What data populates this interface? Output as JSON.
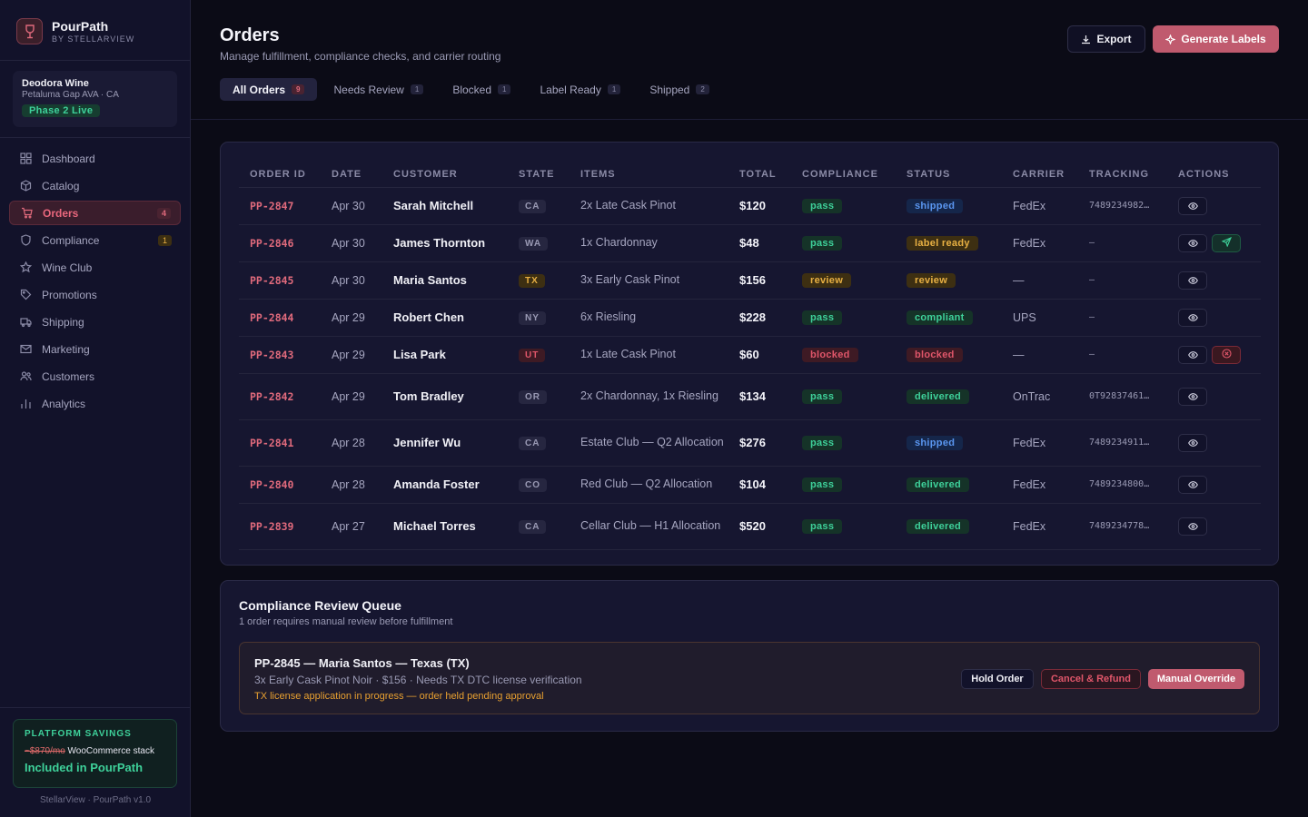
{
  "brand": {
    "name": "PourPath",
    "sub": "BY STELLARVIEW"
  },
  "winery": {
    "name": "Deodora Wine",
    "location": "Petaluma Gap AVA · CA",
    "phase": "Phase 2 Live"
  },
  "nav": [
    {
      "label": "Dashboard",
      "icon": "grid-icon",
      "count": ""
    },
    {
      "label": "Catalog",
      "icon": "box-icon",
      "count": ""
    },
    {
      "label": "Orders",
      "icon": "cart-icon",
      "count": "4",
      "active": true
    },
    {
      "label": "Compliance",
      "icon": "shield-icon",
      "count": "1"
    },
    {
      "label": "Wine Club",
      "icon": "star-icon",
      "count": ""
    },
    {
      "label": "Promotions",
      "icon": "tag-icon",
      "count": ""
    },
    {
      "label": "Shipping",
      "icon": "truck-icon",
      "count": ""
    },
    {
      "label": "Marketing",
      "icon": "mail-icon",
      "count": ""
    },
    {
      "label": "Customers",
      "icon": "users-icon",
      "count": ""
    },
    {
      "label": "Analytics",
      "icon": "bar-chart-icon",
      "count": ""
    }
  ],
  "savings": {
    "heading": "PLATFORM SAVINGS",
    "old_price": "~$870/mo",
    "stack": "WooCommerce stack",
    "included": "Included in PourPath"
  },
  "footer": "StellarView · PourPath v1.0",
  "header": {
    "title": "Orders",
    "subtitle": "Manage fulfillment, compliance checks, and carrier routing",
    "export_label": "Export",
    "generate_label": "Generate Labels"
  },
  "tabs": [
    {
      "label": "All Orders",
      "count": "9"
    },
    {
      "label": "Needs Review",
      "count": "1"
    },
    {
      "label": "Blocked",
      "count": "1"
    },
    {
      "label": "Label Ready",
      "count": "1"
    },
    {
      "label": "Shipped",
      "count": "2"
    }
  ],
  "table": {
    "columns": [
      "ORDER ID",
      "DATE",
      "CUSTOMER",
      "STATE",
      "ITEMS",
      "TOTAL",
      "COMPLIANCE",
      "STATUS",
      "CARRIER",
      "TRACKING",
      "ACTIONS"
    ],
    "rows": [
      {
        "id": "PP-2847",
        "date": "Apr 30",
        "customer": "Sarah Mitchell",
        "state": "CA",
        "items": "2x Late Cask Pinot",
        "total": "$120",
        "compliance": "pass",
        "status": "shipped",
        "carrier": "FedEx",
        "tracking": "7489234982…"
      },
      {
        "id": "PP-2846",
        "date": "Apr 30",
        "customer": "James Thornton",
        "state": "WA",
        "items": "1x Chardonnay",
        "total": "$48",
        "compliance": "pass",
        "status": "label ready",
        "carrier": "FedEx",
        "tracking": "–"
      },
      {
        "id": "PP-2845",
        "date": "Apr 30",
        "customer": "Maria Santos",
        "state": "TX",
        "items": "3x Early Cask Pinot",
        "total": "$156",
        "compliance": "review",
        "status": "review",
        "carrier": "—",
        "tracking": "–"
      },
      {
        "id": "PP-2844",
        "date": "Apr 29",
        "customer": "Robert Chen",
        "state": "NY",
        "items": "6x Riesling",
        "total": "$228",
        "compliance": "pass",
        "status": "compliant",
        "carrier": "UPS",
        "tracking": "–"
      },
      {
        "id": "PP-2843",
        "date": "Apr 29",
        "customer": "Lisa Park",
        "state": "UT",
        "items": "1x Late Cask Pinot",
        "total": "$60",
        "compliance": "blocked",
        "status": "blocked",
        "carrier": "—",
        "tracking": "–"
      },
      {
        "id": "PP-2842",
        "date": "Apr 29",
        "customer": "Tom Bradley",
        "state": "OR",
        "items": "2x Chardonnay, 1x Riesling",
        "total": "$134",
        "compliance": "pass",
        "status": "delivered",
        "carrier": "OnTrac",
        "tracking": "0T92837461…"
      },
      {
        "id": "PP-2841",
        "date": "Apr 28",
        "customer": "Jennifer Wu",
        "state": "CA",
        "items": "Estate Club — Q2 Allocation",
        "total": "$276",
        "compliance": "pass",
        "status": "shipped",
        "carrier": "FedEx",
        "tracking": "7489234911…"
      },
      {
        "id": "PP-2840",
        "date": "Apr 28",
        "customer": "Amanda Foster",
        "state": "CO",
        "items": "Red Club — Q2 Allocation",
        "total": "$104",
        "compliance": "pass",
        "status": "delivered",
        "carrier": "FedEx",
        "tracking": "7489234800…"
      },
      {
        "id": "PP-2839",
        "date": "Apr 27",
        "customer": "Michael Torres",
        "state": "CA",
        "items": "Cellar Club — H1 Allocation",
        "total": "$520",
        "compliance": "pass",
        "status": "delivered",
        "carrier": "FedEx",
        "tracking": "7489234778…"
      }
    ]
  },
  "queue": {
    "title": "Compliance Review Queue",
    "subtitle": "1 order requires manual review before fulfillment",
    "item": {
      "title": "PP-2845 — Maria Santos — Texas (TX)",
      "desc": "3x Early Cask Pinot Noir · $156 · Needs TX DTC license verification",
      "note": "TX license application in progress — order held pending approval",
      "hold_label": "Hold Order",
      "cancel_label": "Cancel & Refund",
      "override_label": "Manual Override"
    }
  },
  "colors": {
    "accent": "#c05a6e",
    "green": "#3ed19a",
    "amber": "#e8b043",
    "red": "#e0566a",
    "blue": "#5a96f0"
  }
}
